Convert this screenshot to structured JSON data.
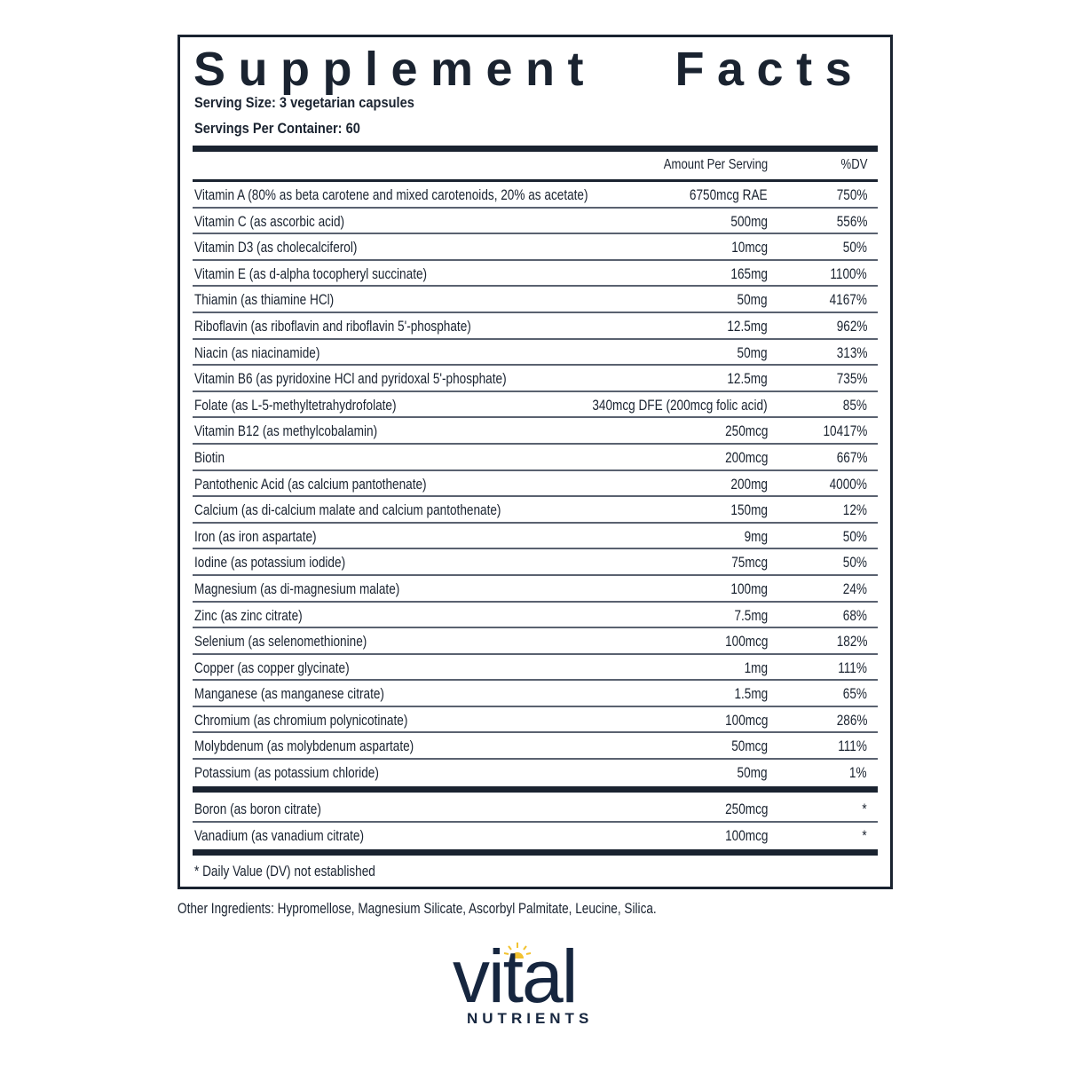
{
  "label": {
    "title": "Supplement   Facts",
    "serving_size": "Serving Size: 3 vegetarian capsules",
    "servings_per_container": "Servings Per Container: 60",
    "column_headers": {
      "amount": "Amount Per Serving",
      "dv": "%DV"
    },
    "nutrients": [
      {
        "name": "Vitamin A (80% as beta carotene and mixed carotenoids, 20% as acetate)",
        "amount": "6750mcg RAE",
        "dv": "750%"
      },
      {
        "name": "Vitamin C (as ascorbic acid)",
        "amount": "500mg",
        "dv": "556%"
      },
      {
        "name": "Vitamin D3 (as cholecalciferol)",
        "amount": "10mcg",
        "dv": "50%"
      },
      {
        "name": "Vitamin E (as d-alpha tocopheryl succinate)",
        "amount": "165mg",
        "dv": "1100%"
      },
      {
        "name": "Thiamin (as thiamine HCl)",
        "amount": "50mg",
        "dv": "4167%"
      },
      {
        "name": "Riboflavin (as riboflavin and riboflavin 5'-phosphate)",
        "amount": "12.5mg",
        "dv": "962%"
      },
      {
        "name": "Niacin (as niacinamide)",
        "amount": "50mg",
        "dv": "313%"
      },
      {
        "name": "Vitamin B6 (as pyridoxine HCl and pyridoxal 5'-phosphate)",
        "amount": "12.5mg",
        "dv": "735%"
      },
      {
        "name": "Folate (as L-5-methyltetrahydrofolate)",
        "amount": "340mcg DFE (200mcg folic acid)",
        "dv": "85%"
      },
      {
        "name": "Vitamin B12 (as methylcobalamin)",
        "amount": "250mcg",
        "dv": "10417%"
      },
      {
        "name": "Biotin",
        "amount": "200mcg",
        "dv": "667%"
      },
      {
        "name": "Pantothenic Acid (as calcium pantothenate)",
        "amount": "200mg",
        "dv": "4000%"
      },
      {
        "name": "Calcium (as di-calcium malate and calcium pantothenate)",
        "amount": "150mg",
        "dv": "12%"
      },
      {
        "name": "Iron (as iron aspartate)",
        "amount": "9mg",
        "dv": "50%"
      },
      {
        "name": "Iodine (as potassium iodide)",
        "amount": "75mcg",
        "dv": "50%"
      },
      {
        "name": "Magnesium (as di-magnesium malate)",
        "amount": "100mg",
        "dv": "24%"
      },
      {
        "name": "Zinc (as zinc citrate)",
        "amount": "7.5mg",
        "dv": "68%"
      },
      {
        "name": "Selenium (as selenomethionine)",
        "amount": "100mcg",
        "dv": "182%"
      },
      {
        "name": "Copper (as copper glycinate)",
        "amount": "1mg",
        "dv": "111%"
      },
      {
        "name": "Manganese (as manganese citrate)",
        "amount": "1.5mg",
        "dv": "65%"
      },
      {
        "name": "Chromium (as chromium polynicotinate)",
        "amount": "100mcg",
        "dv": "286%"
      },
      {
        "name": "Molybdenum (as molybdenum aspartate)",
        "amount": "50mcg",
        "dv": "111%"
      },
      {
        "name": "Potassium (as potassium chloride)",
        "amount": "50mg",
        "dv": "1%"
      }
    ],
    "other_nutrients": [
      {
        "name": "Boron (as boron citrate)",
        "amount": "250mcg",
        "dv": "*"
      },
      {
        "name": "Vanadium (as vanadium citrate)",
        "amount": "100mcg",
        "dv": "*"
      }
    ],
    "footnote": "* Daily Value (DV) not established"
  },
  "other_ingredients": "Other Ingredients: Hypromellose, Magnesium Silicate, Ascorbyl Palmitate, Leucine, Silica.",
  "brand": {
    "name": "vital",
    "subtitle": "NUTRIENTS",
    "colors": {
      "navy": "#16263f",
      "sun": "#f2c230"
    }
  }
}
